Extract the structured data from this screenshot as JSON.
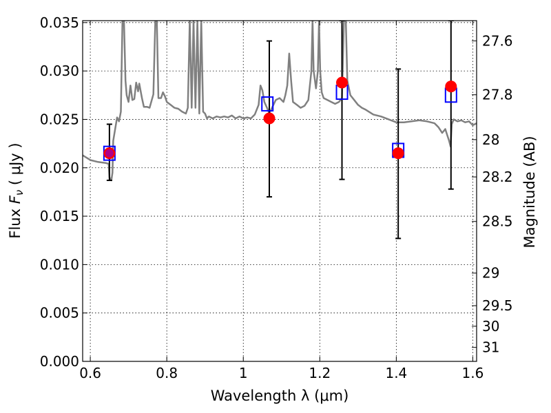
{
  "chart_data": {
    "type": "scatter",
    "xlabel": "Wavelength  λ (μm)",
    "ylabel_left": {
      "prefix": "Flux  ",
      "symbol": "F",
      "subscript": "ν",
      "unit": "  ( μJy )"
    },
    "ylabel_right": "Magnitude (AB)",
    "xlim": [
      0.58,
      1.61
    ],
    "ylim": [
      0.0,
      0.0352
    ],
    "grid": true,
    "x_ticks": [
      {
        "value": 0.6,
        "label": "0.6"
      },
      {
        "value": 0.8,
        "label": "0.8"
      },
      {
        "value": 1.0,
        "label": "1"
      },
      {
        "value": 1.2,
        "label": "1.2"
      },
      {
        "value": 1.4,
        "label": "1.4"
      },
      {
        "value": 1.6,
        "label": "1.6"
      }
    ],
    "y_ticks": [
      {
        "value": 0.0,
        "label": "0.000"
      },
      {
        "value": 0.005,
        "label": "0.005"
      },
      {
        "value": 0.01,
        "label": "0.010"
      },
      {
        "value": 0.015,
        "label": "0.015"
      },
      {
        "value": 0.02,
        "label": "0.020"
      },
      {
        "value": 0.025,
        "label": "0.025"
      },
      {
        "value": 0.03,
        "label": "0.030"
      },
      {
        "value": 0.035,
        "label": "0.035"
      }
    ],
    "right_ticks": [
      {
        "mag": 27.6,
        "label": "27.6"
      },
      {
        "mag": 27.8,
        "label": "27.8"
      },
      {
        "mag": 28.0,
        "label": "28"
      },
      {
        "mag": 28.2,
        "label": "28.2"
      },
      {
        "mag": 28.5,
        "label": "28.5"
      },
      {
        "mag": 29.0,
        "label": "29"
      },
      {
        "mag": 29.5,
        "label": "29.5"
      },
      {
        "mag": 30.0,
        "label": "30"
      },
      {
        "mag": 31.0,
        "label": "31"
      }
    ],
    "series": [
      {
        "name": "observed",
        "marker": "circle",
        "color": "#ff0000",
        "points": [
          {
            "x": 0.65,
            "y": 0.0215,
            "yerr_low": 0.0187,
            "yerr_high": 0.0245
          },
          {
            "x": 1.068,
            "y": 0.0251,
            "yerr_low": 0.017,
            "yerr_high": 0.0331
          },
          {
            "x": 1.258,
            "y": 0.0288,
            "yerr_low": 0.0188,
            "yerr_high": 0.0352
          },
          {
            "x": 1.405,
            "y": 0.0215,
            "yerr_low": 0.0127,
            "yerr_high": 0.0302
          },
          {
            "x": 1.543,
            "y": 0.0284,
            "yerr_low": 0.0178,
            "yerr_high": 0.0352
          }
        ]
      },
      {
        "name": "model-photometry",
        "marker": "square",
        "color": "#0000ff",
        "points": [
          {
            "x": 0.65,
            "y": 0.0215
          },
          {
            "x": 1.063,
            "y": 0.0266
          },
          {
            "x": 1.258,
            "y": 0.0278
          },
          {
            "x": 1.405,
            "y": 0.0218
          },
          {
            "x": 1.543,
            "y": 0.0275
          }
        ]
      },
      {
        "name": "model-spectrum",
        "color": "#808080",
        "points": [
          [
            0.58,
            0.0213
          ],
          [
            0.6,
            0.0208
          ],
          [
            0.62,
            0.0206
          ],
          [
            0.64,
            0.0205
          ],
          [
            0.648,
            0.0204
          ],
          [
            0.65,
            0.019
          ],
          [
            0.655,
            0.0187
          ],
          [
            0.658,
            0.0195
          ],
          [
            0.66,
            0.0228
          ],
          [
            0.665,
            0.024
          ],
          [
            0.67,
            0.0252
          ],
          [
            0.675,
            0.0248
          ],
          [
            0.68,
            0.0258
          ],
          [
            0.684,
            0.0352
          ],
          [
            0.688,
            0.0352
          ],
          [
            0.692,
            0.029
          ],
          [
            0.695,
            0.0275
          ],
          [
            0.7,
            0.0268
          ],
          [
            0.705,
            0.0285
          ],
          [
            0.71,
            0.027
          ],
          [
            0.715,
            0.0271
          ],
          [
            0.72,
            0.0288
          ],
          [
            0.725,
            0.0279
          ],
          [
            0.728,
            0.0287
          ],
          [
            0.735,
            0.0272
          ],
          [
            0.74,
            0.0263
          ],
          [
            0.748,
            0.0263
          ],
          [
            0.755,
            0.0262
          ],
          [
            0.765,
            0.0276
          ],
          [
            0.77,
            0.0352
          ],
          [
            0.774,
            0.0352
          ],
          [
            0.778,
            0.0272
          ],
          [
            0.785,
            0.0272
          ],
          [
            0.79,
            0.0278
          ],
          [
            0.795,
            0.0274
          ],
          [
            0.8,
            0.0268
          ],
          [
            0.81,
            0.0265
          ],
          [
            0.82,
            0.0262
          ],
          [
            0.83,
            0.0261
          ],
          [
            0.84,
            0.0258
          ],
          [
            0.85,
            0.0256
          ],
          [
            0.855,
            0.0262
          ],
          [
            0.86,
            0.0352
          ],
          [
            0.865,
            0.0262
          ],
          [
            0.87,
            0.0352
          ],
          [
            0.875,
            0.0262
          ],
          [
            0.88,
            0.0352
          ],
          [
            0.885,
            0.0256
          ],
          [
            0.89,
            0.0352
          ],
          [
            0.895,
            0.0258
          ],
          [
            0.9,
            0.0256
          ],
          [
            0.905,
            0.0251
          ],
          [
            0.91,
            0.0253
          ],
          [
            0.92,
            0.0251
          ],
          [
            0.93,
            0.0253
          ],
          [
            0.94,
            0.0252
          ],
          [
            0.95,
            0.0253
          ],
          [
            0.96,
            0.0252
          ],
          [
            0.97,
            0.0254
          ],
          [
            0.98,
            0.0251
          ],
          [
            0.99,
            0.0253
          ],
          [
            1.0,
            0.0251
          ],
          [
            1.01,
            0.0252
          ],
          [
            1.02,
            0.0251
          ],
          [
            1.03,
            0.0255
          ],
          [
            1.04,
            0.0265
          ],
          [
            1.045,
            0.0285
          ],
          [
            1.05,
            0.028
          ],
          [
            1.055,
            0.0268
          ],
          [
            1.062,
            0.0262
          ],
          [
            1.068,
            0.0256
          ],
          [
            1.075,
            0.0262
          ],
          [
            1.085,
            0.027
          ],
          [
            1.095,
            0.0272
          ],
          [
            1.105,
            0.0268
          ],
          [
            1.11,
            0.0275
          ],
          [
            1.115,
            0.0285
          ],
          [
            1.12,
            0.0318
          ],
          [
            1.125,
            0.029
          ],
          [
            1.13,
            0.0268
          ],
          [
            1.14,
            0.0265
          ],
          [
            1.15,
            0.0262
          ],
          [
            1.16,
            0.0264
          ],
          [
            1.17,
            0.027
          ],
          [
            1.178,
            0.03
          ],
          [
            1.181,
            0.0352
          ],
          [
            1.184,
            0.03
          ],
          [
            1.19,
            0.0282
          ],
          [
            1.195,
            0.03
          ],
          [
            1.198,
            0.0352
          ],
          [
            1.201,
            0.03
          ],
          [
            1.205,
            0.0278
          ],
          [
            1.21,
            0.0272
          ],
          [
            1.22,
            0.027
          ],
          [
            1.23,
            0.0268
          ],
          [
            1.24,
            0.0266
          ],
          [
            1.25,
            0.0268
          ],
          [
            1.258,
            0.0272
          ],
          [
            1.263,
            0.0352
          ],
          [
            1.268,
            0.0352
          ],
          [
            1.272,
            0.029
          ],
          [
            1.28,
            0.0275
          ],
          [
            1.29,
            0.027
          ],
          [
            1.3,
            0.0265
          ],
          [
            1.31,
            0.0262
          ],
          [
            1.32,
            0.026
          ],
          [
            1.34,
            0.0255
          ],
          [
            1.36,
            0.0253
          ],
          [
            1.38,
            0.025
          ],
          [
            1.4,
            0.0247
          ],
          [
            1.42,
            0.0247
          ],
          [
            1.44,
            0.0248
          ],
          [
            1.46,
            0.0249
          ],
          [
            1.48,
            0.0248
          ],
          [
            1.5,
            0.0246
          ],
          [
            1.51,
            0.0242
          ],
          [
            1.52,
            0.0236
          ],
          [
            1.528,
            0.024
          ],
          [
            1.533,
            0.0234
          ],
          [
            1.538,
            0.0228
          ],
          [
            1.542,
            0.0222
          ],
          [
            1.545,
            0.0245
          ],
          [
            1.55,
            0.025
          ],
          [
            1.56,
            0.0248
          ],
          [
            1.57,
            0.0249
          ],
          [
            1.58,
            0.0247
          ],
          [
            1.59,
            0.0248
          ],
          [
            1.6,
            0.0244
          ],
          [
            1.61,
            0.0246
          ]
        ]
      }
    ]
  }
}
